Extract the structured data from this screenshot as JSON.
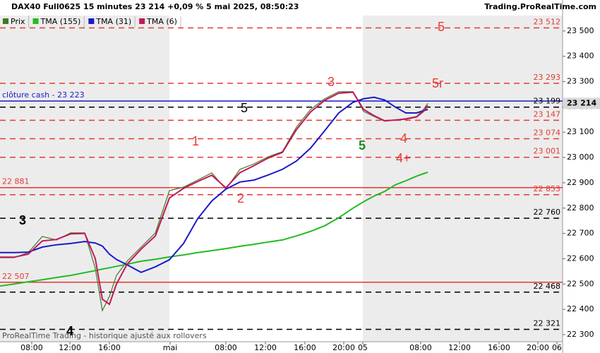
{
  "header": {
    "title": "DAX40 Full0625 15 minutes 23 214 +0,09 % 5 mai 2025, 08:50:23",
    "source": "Trading.ProRealTime.com"
  },
  "footer": "ProRealTime Trading - historique ajusté aux rollovers",
  "chart_data": {
    "type": "line",
    "x": [
      0,
      1.44,
      2.88,
      4.32,
      5.77,
      7.21,
      8.65,
      9.73,
      10.45,
      11.17,
      11.89,
      12.97,
      14.41,
      15.86,
      17.3,
      18.74,
      20.18,
      21.62,
      23.06,
      24.5,
      25.95,
      27.39,
      28.83,
      30.27,
      31.71,
      33.15,
      34.59,
      36.04,
      37.12,
      38.2,
      39.28,
      40.36,
      41.44,
      42.52,
      43.24,
      43.68
    ],
    "series": [
      {
        "name": "Prix",
        "color": "#3f7a1f",
        "values": [
          22604,
          22604,
          22624,
          22688,
          22674,
          22702,
          22702,
          22562,
          22395,
          22451,
          22534,
          22590,
          22646,
          22702,
          22869,
          22883,
          22911,
          22939,
          22875,
          22953,
          22975,
          23003,
          23023,
          23120,
          23190,
          23232,
          23260,
          23260,
          23182,
          23162,
          23143,
          23148,
          23154,
          23162,
          23190,
          23214
        ]
      },
      {
        "name": "TMA (155)",
        "color": "#22bb22",
        "values": [
          22492,
          22500,
          22509,
          22517,
          22526,
          22534,
          22545,
          22553,
          22559,
          22564,
          22570,
          22578,
          22590,
          22598,
          22607,
          22615,
          22624,
          22632,
          22640,
          22649,
          22657,
          22666,
          22674,
          22690,
          22708,
          22730,
          22762,
          22800,
          22825,
          22848,
          22866,
          22892,
          22908,
          22926,
          22936,
          22942
        ]
      },
      {
        "name": "TMA (31)",
        "color": "#1a1acc",
        "values": [
          22624,
          22624,
          22626,
          22646,
          22655,
          22660,
          22668,
          22662,
          22650,
          22618,
          22597,
          22576,
          22546,
          22568,
          22596,
          22660,
          22758,
          22828,
          22875,
          22903,
          22911,
          22931,
          22953,
          22986,
          23037,
          23106,
          23176,
          23218,
          23232,
          23238,
          23227,
          23199,
          23176,
          23176,
          23185,
          23190
        ]
      },
      {
        "name": "TMA (6)",
        "color": "#c2185b",
        "values": [
          22606,
          22606,
          22618,
          22670,
          22676,
          22698,
          22700,
          22600,
          22440,
          22420,
          22500,
          22578,
          22638,
          22690,
          22840,
          22878,
          22905,
          22930,
          22880,
          22940,
          22968,
          22998,
          23020,
          23110,
          23180,
          23226,
          23254,
          23258,
          23190,
          23165,
          23145,
          23148,
          23152,
          23160,
          23182,
          23205
        ]
      }
    ],
    "levels": [
      {
        "value": 23512,
        "label": "23 512",
        "color": "#e53935",
        "style": "dashed",
        "label_side": "right"
      },
      {
        "value": 23293,
        "label": "23 293",
        "color": "#e53935",
        "style": "dashed",
        "label_side": "right"
      },
      {
        "value": 23223,
        "label": "clôture cash -  23 223",
        "color": "#1a1acc",
        "style": "solid",
        "label_side": "left"
      },
      {
        "value": 23199,
        "label": "23 199",
        "color": "#000000",
        "style": "dashed",
        "label_side": "right"
      },
      {
        "value": 23147,
        "label": "23 147",
        "color": "#e53935",
        "style": "dashed",
        "label_side": "right"
      },
      {
        "value": 23074,
        "label": "23 074",
        "color": "#e53935",
        "style": "dashed",
        "label_side": "right"
      },
      {
        "value": 23001,
        "label": "23 001",
        "color": "#e53935",
        "style": "dashed",
        "label_side": "right"
      },
      {
        "value": 22881,
        "label": "22 881",
        "color": "#e53935",
        "style": "solid",
        "label_side": "left"
      },
      {
        "value": 22853,
        "label": "22 853",
        "color": "#e53935",
        "style": "dashed",
        "label_side": "right"
      },
      {
        "value": 22760,
        "label": "22 760",
        "color": "#000000",
        "style": "dashed",
        "label_side": "right"
      },
      {
        "value": 22507,
        "label": "22 507",
        "color": "#e53935",
        "style": "solid",
        "label_side": "left"
      },
      {
        "value": 22468,
        "label": "22 468",
        "color": "#000000",
        "style": "dashed",
        "label_side": "right"
      },
      {
        "value": 22321,
        "label": "22 321",
        "color": "#000000",
        "style": "dashed",
        "label_side": "right"
      }
    ],
    "last_price": {
      "value": 23214,
      "label": "23 214"
    },
    "annotations": [
      "5",
      "3",
      "5r",
      "5",
      "1",
      "5",
      "4",
      "4+",
      "2",
      "3",
      "4"
    ],
    "xlim": [
      0,
      57.44
    ],
    "xticks": [
      {
        "value": 3.24,
        "label": "08:00"
      },
      {
        "value": 7.14,
        "label": "12:00"
      },
      {
        "value": 11.17,
        "label": "16:00"
      },
      {
        "value": 17.37,
        "label": "mai"
      },
      {
        "value": 23.06,
        "label": "08:00"
      },
      {
        "value": 27.1,
        "label": "12:00"
      },
      {
        "value": 31.13,
        "label": "16:00"
      },
      {
        "value": 35.1,
        "label": "20:00"
      },
      {
        "value": 37.04,
        "label": "05"
      },
      {
        "value": 42.95,
        "label": "08:00"
      },
      {
        "value": 46.92,
        "label": "12:00"
      },
      {
        "value": 50.95,
        "label": "16:00"
      },
      {
        "value": 54.92,
        "label": "20:00"
      },
      {
        "value": 56.86,
        "label": "06"
      }
    ],
    "ylim": [
      22272,
      23561
    ],
    "yticks": [
      {
        "value": 22300,
        "label": "22 300"
      },
      {
        "value": 22400,
        "label": "22 400"
      },
      {
        "value": 22500,
        "label": "22 500"
      },
      {
        "value": 22600,
        "label": "22 600"
      },
      {
        "value": 22700,
        "label": "22 700"
      },
      {
        "value": 22800,
        "label": "22 800"
      },
      {
        "value": 22900,
        "label": "22 900"
      },
      {
        "value": 23000,
        "label": "23 000"
      },
      {
        "value": 23100,
        "label": "23 100"
      },
      {
        "value": 23200,
        "label": "23 200"
      },
      {
        "value": 23300,
        "label": "23 300"
      },
      {
        "value": 23400,
        "label": "23 400"
      },
      {
        "value": 23500,
        "label": "23 500"
      }
    ]
  }
}
